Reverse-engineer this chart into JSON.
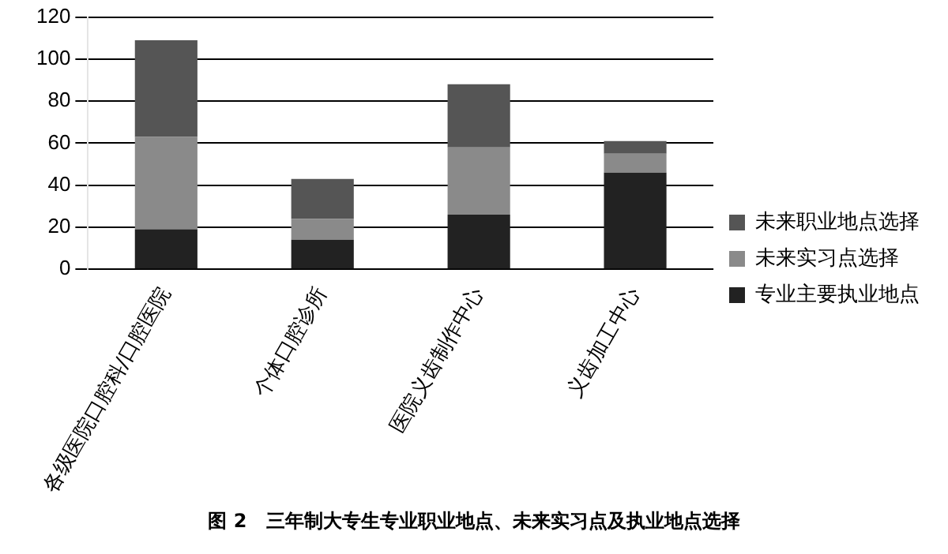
{
  "chart_data": {
    "type": "bar",
    "stacked": true,
    "categories": [
      "各级医院口腔科/口腔医院",
      "个体口腔诊所",
      "医院义齿制作中心",
      "义齿加工中心"
    ],
    "series": [
      {
        "name": "专业主要执业地点",
        "color": "#222222",
        "values": [
          19,
          14,
          26,
          46
        ]
      },
      {
        "name": "未来实习点选择",
        "color": "#8a8a8a",
        "values": [
          44,
          10,
          32,
          9
        ]
      },
      {
        "name": "未来职业地点选择",
        "color": "#555555",
        "values": [
          46,
          19,
          30,
          6
        ]
      }
    ],
    "ylim": [
      0,
      120
    ],
    "yticks": [
      0,
      20,
      40,
      60,
      80,
      100,
      120
    ],
    "grid": "y",
    "legend": "right",
    "annotations": [
      "图 2　三年制大专生专业职业地点、未来实习点及执业地点选择"
    ]
  }
}
